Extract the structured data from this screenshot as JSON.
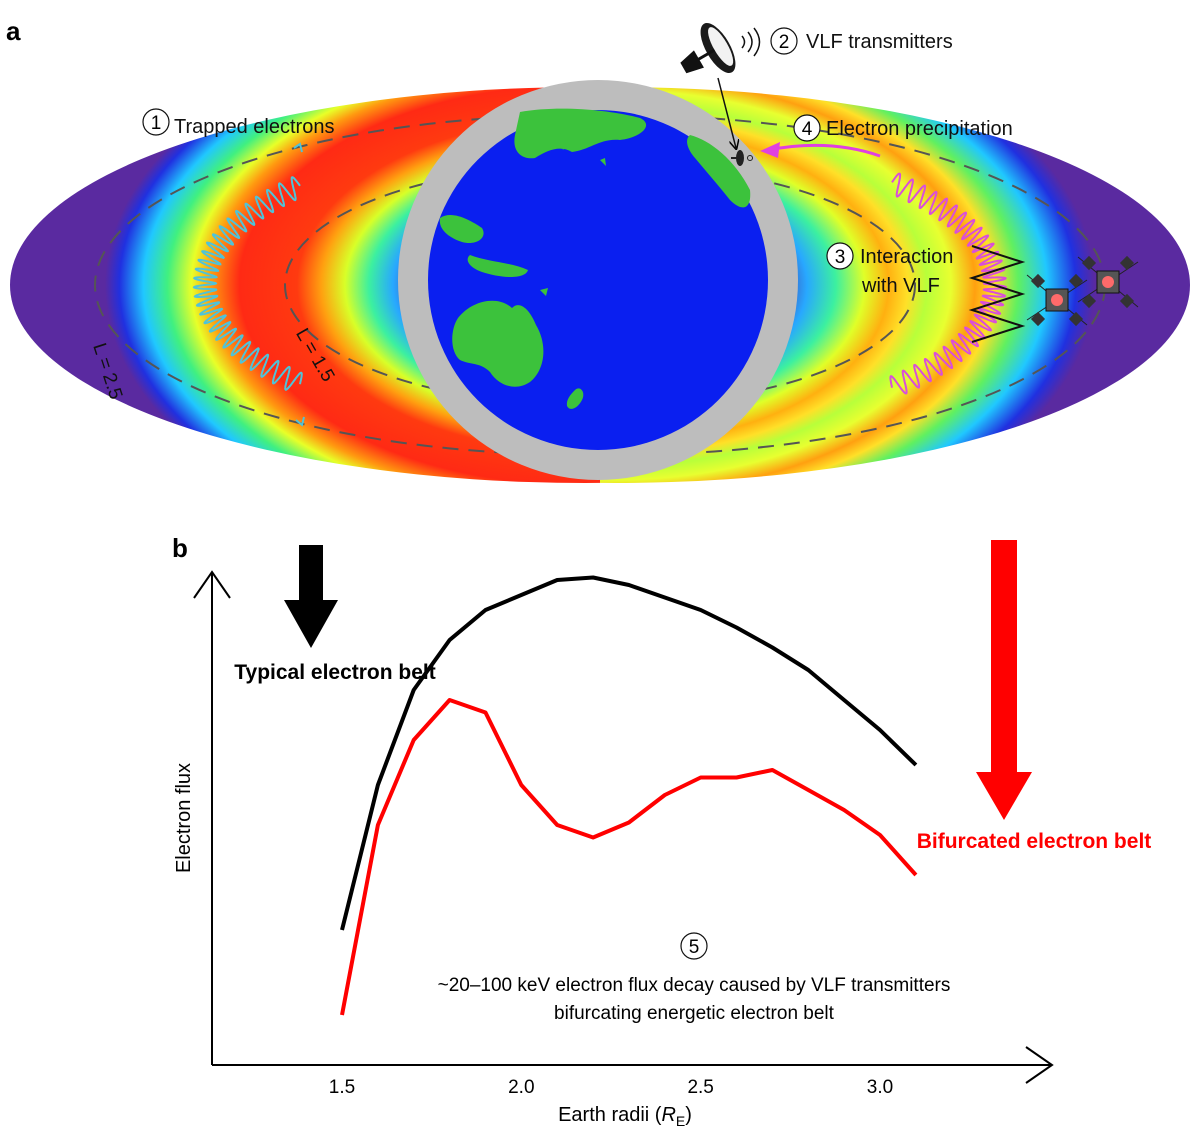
{
  "panel_a": {
    "label": "a",
    "step1": {
      "num": "1",
      "text": "Trapped electrons"
    },
    "step2": {
      "num": "2",
      "text": "VLF transmitters"
    },
    "step3": {
      "num": "3",
      "line1": "Interaction",
      "line2": "with VLF"
    },
    "step4": {
      "num": "4",
      "text": "Electron precipitation"
    },
    "shell_outer": "L = 2.5",
    "shell_inner": "L = 1.5",
    "colors": {
      "wave_cyan": "#4fc3d9",
      "wave_magenta": "#d94fd9",
      "earth_ring": "#bdbdbd",
      "ocean": "#0a1ff0",
      "land": "#3cc23c",
      "precipitation_arrow": "#e040e0"
    }
  },
  "panel_b": {
    "label": "b",
    "typical_label": "Typical electron belt",
    "bifurcated_label": "Bifurcated electron belt",
    "step5_num": "5",
    "caption_line1": "~20–100 keV electron flux decay caused by VLF transmitters",
    "caption_line2": "bifurcating energetic electron belt",
    "colors": {
      "typical": "#000000",
      "bifurcated": "#ff0000"
    }
  },
  "chart_data": {
    "type": "line",
    "xlabel": "Earth radii (RE)",
    "ylabel": "Electron flux",
    "xticks": [
      "1.5",
      "2.0",
      "2.5",
      "3.0"
    ],
    "xlim": [
      1.2,
      3.5
    ],
    "ylim": [
      0,
      100
    ],
    "series": [
      {
        "name": "Typical electron belt",
        "color": "#000000",
        "x": [
          1.5,
          1.6,
          1.7,
          1.8,
          1.9,
          2.0,
          2.1,
          2.2,
          2.3,
          2.4,
          2.5,
          2.6,
          2.7,
          2.8,
          2.9,
          3.0,
          3.1
        ],
        "y": [
          26,
          55,
          74,
          84,
          90,
          93,
          96,
          96.5,
          95,
          92.5,
          90,
          86.5,
          82.5,
          78,
          72,
          66,
          59
        ]
      },
      {
        "name": "Bifurcated electron belt",
        "color": "#ff0000",
        "x": [
          1.5,
          1.6,
          1.7,
          1.8,
          1.9,
          2.0,
          2.1,
          2.2,
          2.3,
          2.4,
          2.5,
          2.6,
          2.7,
          2.8,
          2.9,
          3.0,
          3.1
        ],
        "y": [
          9,
          47,
          64,
          72,
          69.5,
          55,
          47,
          44.5,
          47.5,
          53,
          56.5,
          56.5,
          58,
          54,
          50,
          45,
          37
        ]
      }
    ]
  }
}
